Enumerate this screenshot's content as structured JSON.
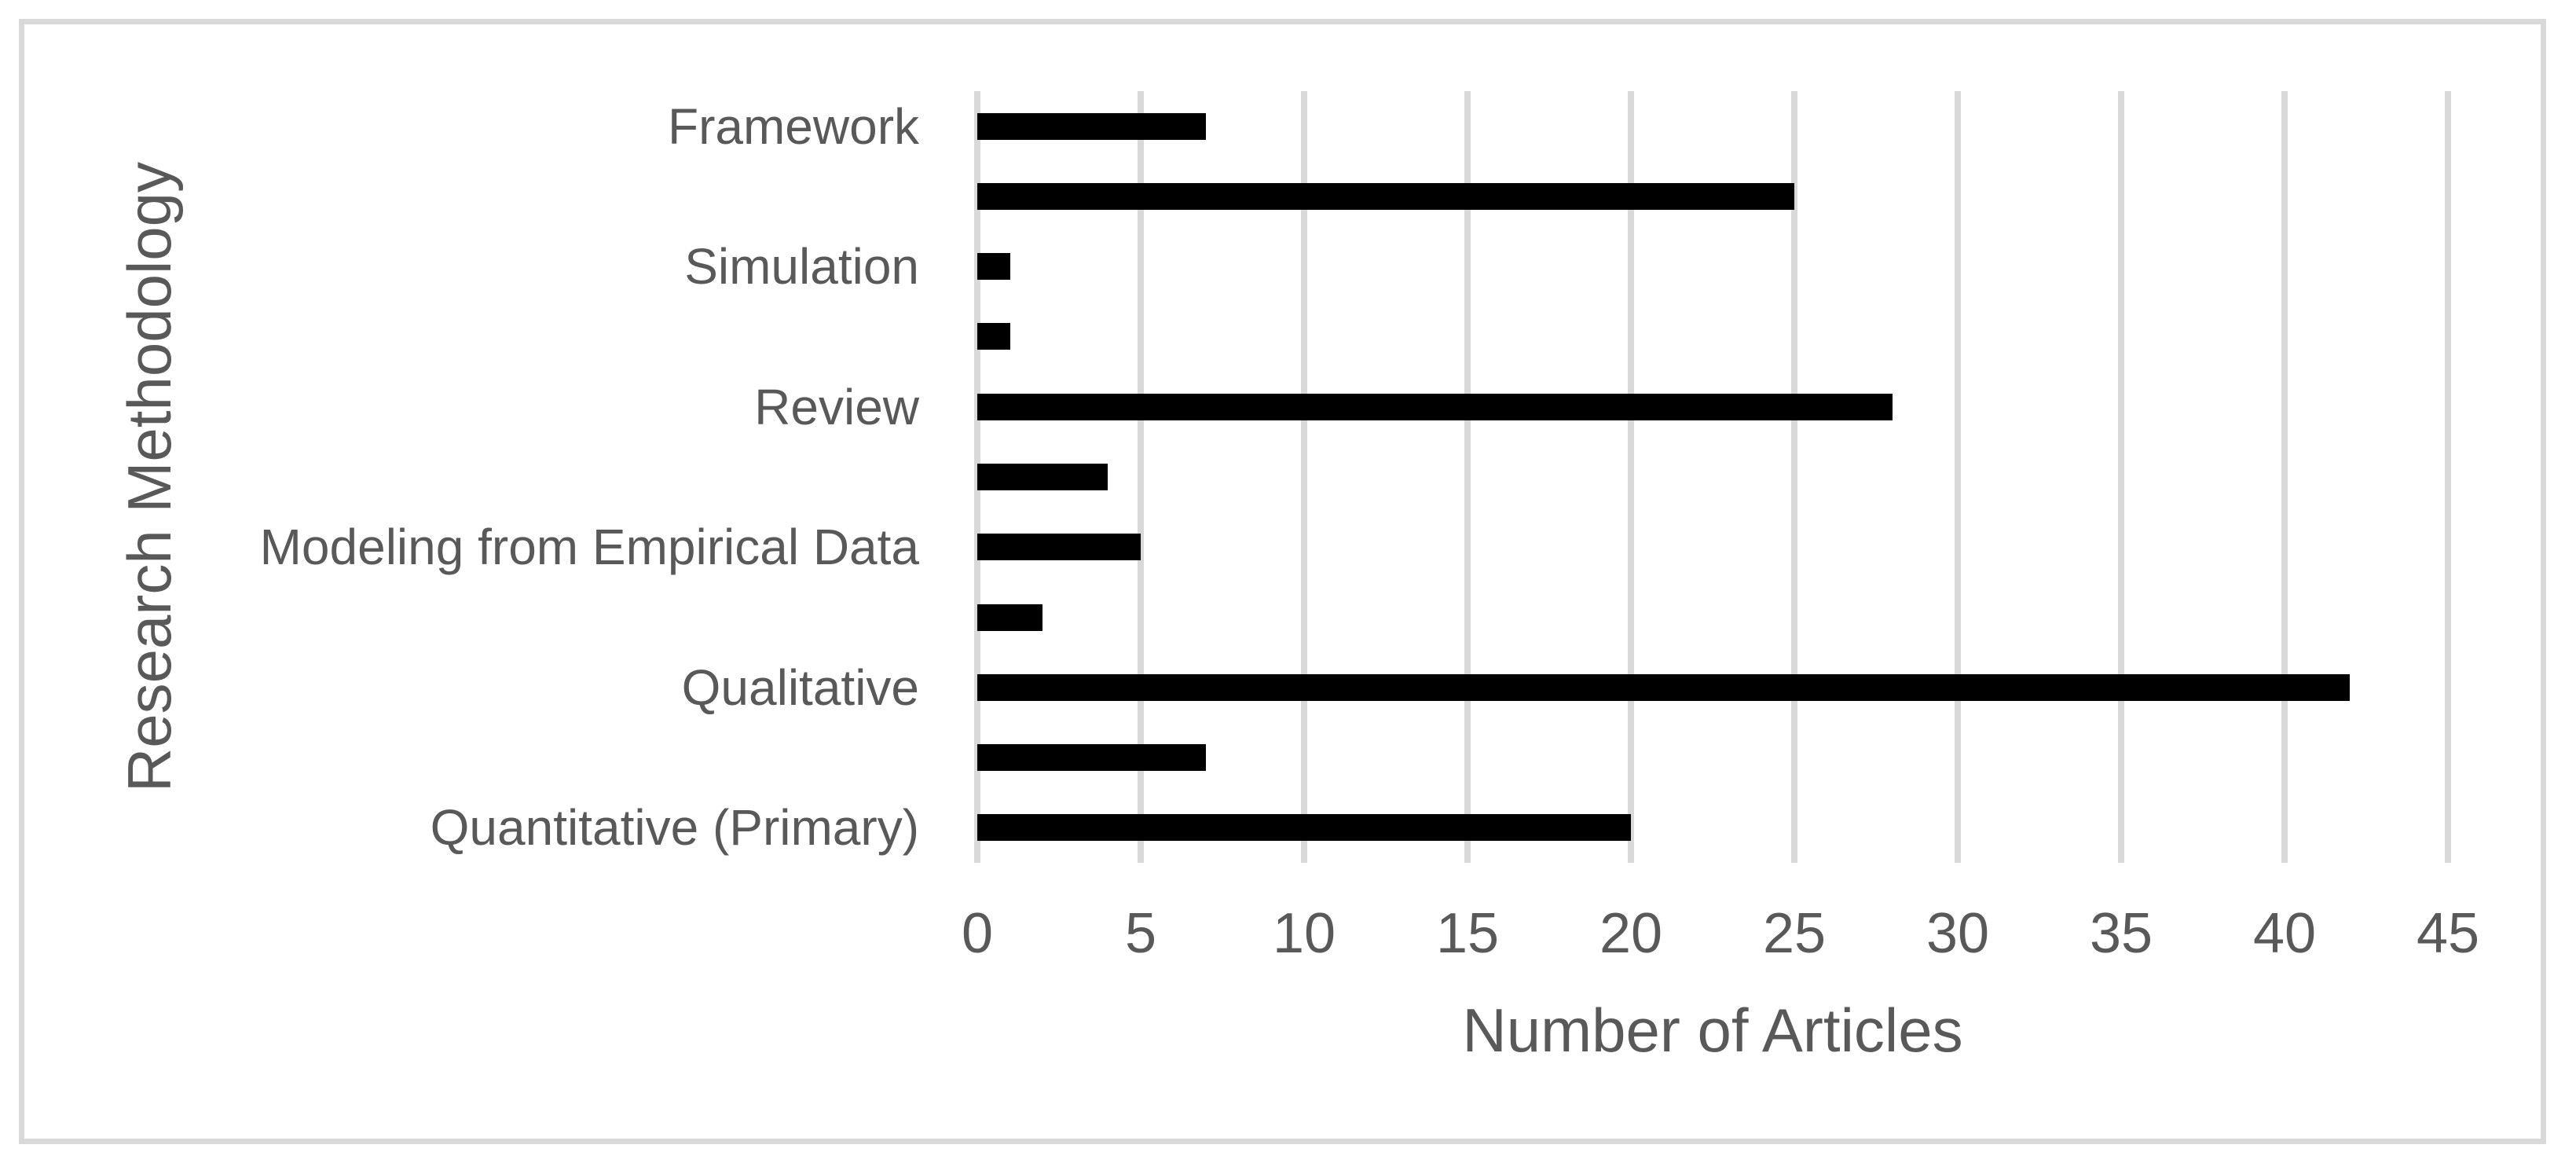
{
  "chart_data": {
    "type": "bar",
    "orientation": "horizontal",
    "xlabel": "Number of Articles",
    "ylabel": "Research Methodology",
    "xlim": [
      0,
      45
    ],
    "xticks": [
      0,
      5,
      10,
      15,
      20,
      25,
      30,
      35,
      40,
      45
    ],
    "categories": [
      "Framework",
      "",
      "Simulation",
      "",
      "Review",
      "",
      "Modeling from Empirical Data",
      "",
      "Qualitative",
      "",
      "Quantitative (Primary)"
    ],
    "values": [
      7,
      25,
      1,
      1,
      28,
      4,
      5,
      2,
      42,
      7,
      20
    ],
    "grid": "vertical",
    "legend_position": "none",
    "bar_color": "#000000",
    "gridline_color": "#d9d9d9",
    "text_color": "#595959",
    "frame_color": "#d9d9d9"
  }
}
